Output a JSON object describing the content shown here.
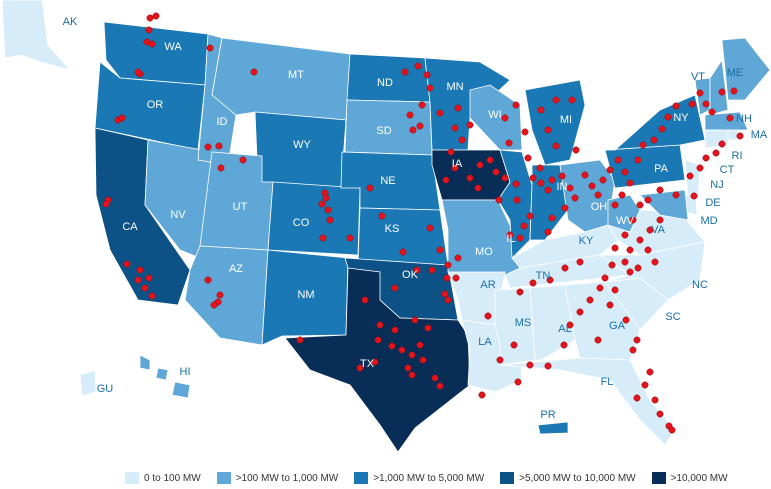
{
  "colors": {
    "tier0": "#d6ecf9",
    "tier1": "#5ea7d6",
    "tier2": "#1a78b5",
    "tier3": "#0c5286",
    "tier4": "#082e57",
    "plant": "#e5141c"
  },
  "states": [
    {
      "code": "AK",
      "tier": 0
    },
    {
      "code": "WA",
      "tier": 2
    },
    {
      "code": "OR",
      "tier": 2
    },
    {
      "code": "CA",
      "tier": 3
    },
    {
      "code": "NV",
      "tier": 1
    },
    {
      "code": "ID",
      "tier": 1
    },
    {
      "code": "MT",
      "tier": 1
    },
    {
      "code": "WY",
      "tier": 2
    },
    {
      "code": "UT",
      "tier": 1
    },
    {
      "code": "AZ",
      "tier": 1
    },
    {
      "code": "CO",
      "tier": 2
    },
    {
      "code": "NM",
      "tier": 2
    },
    {
      "code": "ND",
      "tier": 2
    },
    {
      "code": "SD",
      "tier": 1
    },
    {
      "code": "NE",
      "tier": 2
    },
    {
      "code": "KS",
      "tier": 2
    },
    {
      "code": "OK",
      "tier": 3
    },
    {
      "code": "TX",
      "tier": 4
    },
    {
      "code": "MN",
      "tier": 2
    },
    {
      "code": "IA",
      "tier": 4
    },
    {
      "code": "MO",
      "tier": 1
    },
    {
      "code": "AR",
      "tier": 0
    },
    {
      "code": "LA",
      "tier": 0
    },
    {
      "code": "WI",
      "tier": 1
    },
    {
      "code": "IL",
      "tier": 2
    },
    {
      "code": "MI",
      "tier": 2
    },
    {
      "code": "IN",
      "tier": 2
    },
    {
      "code": "OH",
      "tier": 1
    },
    {
      "code": "KY",
      "tier": 0
    },
    {
      "code": "TN",
      "tier": 0
    },
    {
      "code": "MS",
      "tier": 0
    },
    {
      "code": "AL",
      "tier": 0
    },
    {
      "code": "GA",
      "tier": 0
    },
    {
      "code": "FL",
      "tier": 0
    },
    {
      "code": "SC",
      "tier": 0
    },
    {
      "code": "NC",
      "tier": 0
    },
    {
      "code": "VA",
      "tier": 0
    },
    {
      "code": "WV",
      "tier": 1
    },
    {
      "code": "PA",
      "tier": 2
    },
    {
      "code": "NY",
      "tier": 2
    },
    {
      "code": "VT",
      "tier": 1
    },
    {
      "code": "NH",
      "tier": 1
    },
    {
      "code": "ME",
      "tier": 1
    },
    {
      "code": "MA",
      "tier": 1
    },
    {
      "code": "RI",
      "tier": 0
    },
    {
      "code": "CT",
      "tier": 0
    },
    {
      "code": "NJ",
      "tier": 0
    },
    {
      "code": "DE",
      "tier": 0
    },
    {
      "code": "MD",
      "tier": 1
    },
    {
      "code": "HI",
      "tier": 1
    },
    {
      "code": "GU",
      "tier": 0
    },
    {
      "code": "PR",
      "tier": 2
    }
  ],
  "legend": [
    {
      "label": "0 to 100 MW",
      "color": "#d6ecf9"
    },
    {
      "label": ">100 MW to 1,000 MW",
      "color": "#5ea7d6"
    },
    {
      "label": ">1,000 MW to 5,000 MW",
      "color": "#1a78b5"
    },
    {
      "label": ">5,000 MW to 10,000 MW",
      "color": "#0c5286"
    },
    {
      "label": ">10,000 MW",
      "color": "#082e57"
    }
  ]
}
